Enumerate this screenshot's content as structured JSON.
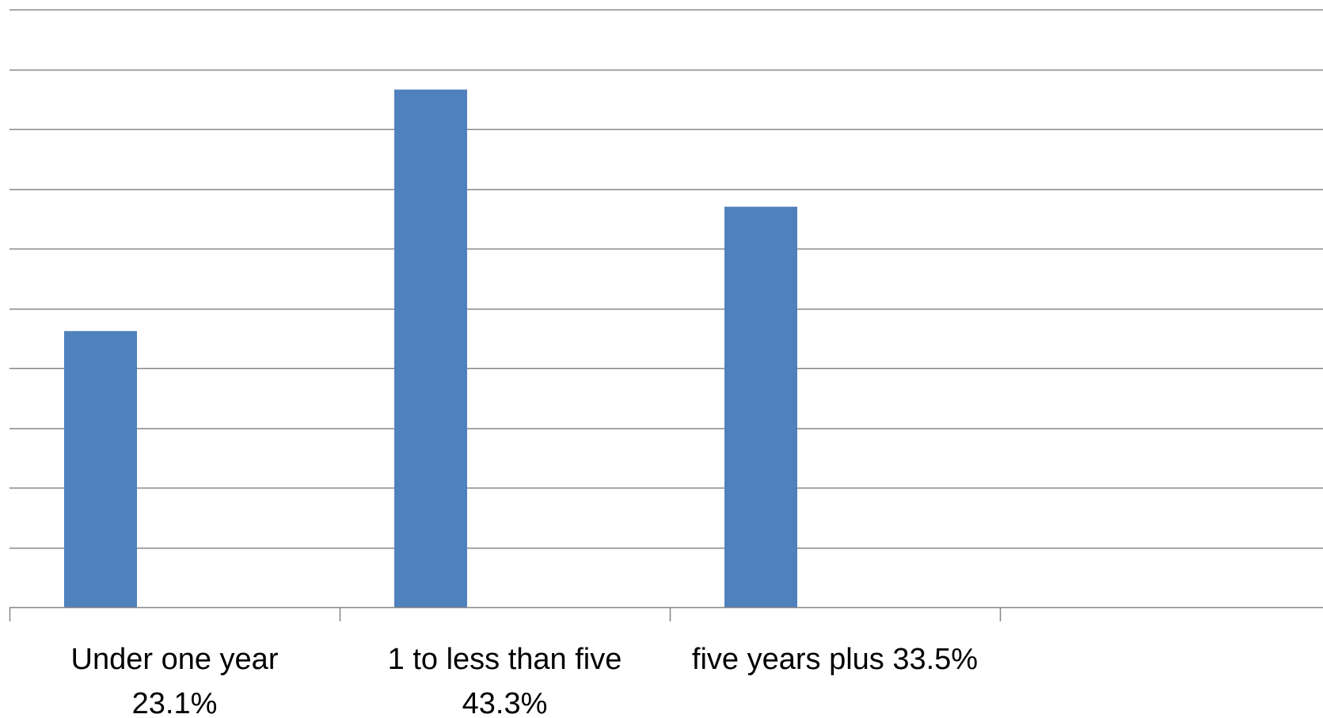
{
  "chart_data": {
    "type": "bar",
    "title": "",
    "xlabel": "",
    "ylabel": "",
    "categories": [
      [
        "Under one year",
        "23.1%"
      ],
      [
        "1 to less than five",
        "43.3%"
      ],
      [
        "five years plus 33.5%"
      ],
      [
        ""
      ]
    ],
    "values": [
      23.1,
      43.3,
      33.5,
      null
    ],
    "ylim": [
      0,
      50
    ],
    "gridline_step": 5,
    "grid": true,
    "legend": "none",
    "colors": {
      "bar": "#4F81BD",
      "grid": "#868686",
      "axis": "#868686",
      "text": "#000000"
    }
  }
}
